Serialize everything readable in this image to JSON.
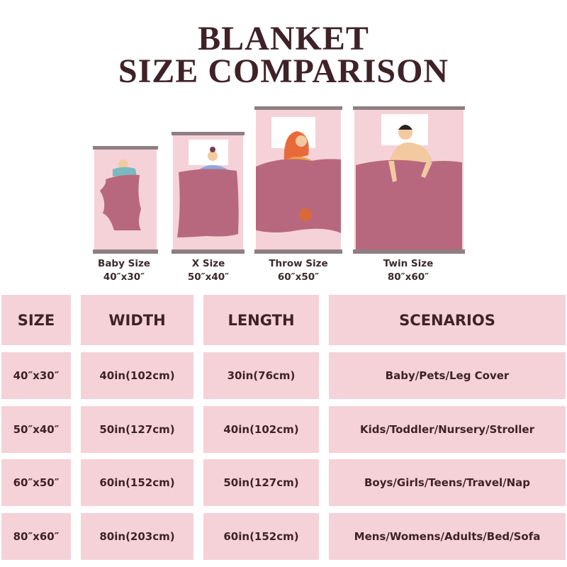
{
  "title": {
    "line1": "BLANKET",
    "line2": "SIZE COMPARISON"
  },
  "colors": {
    "background_pink": "#f5d2d8",
    "blanket": "#b8687e",
    "bar": "#8e7f84",
    "text": "#3f2228"
  },
  "blankets": [
    {
      "name": "Baby Size",
      "dims": "40″x30″"
    },
    {
      "name": "X Size",
      "dims": "50″x40″"
    },
    {
      "name": "Throw Size",
      "dims": "60″x50″"
    },
    {
      "name": "Twin Size",
      "dims": "80″x60″"
    }
  ],
  "table": {
    "headers": [
      "SIZE",
      "WIDTH",
      "LENGTH",
      "SCENARIOS"
    ],
    "rows": [
      [
        "40″x30″",
        "40in(102cm)",
        "30in(76cm)",
        "Baby/Pets/Leg Cover"
      ],
      [
        "50″x40″",
        "50in(127cm)",
        "40in(102cm)",
        "Kids/Toddler/Nursery/Stroller"
      ],
      [
        "60″x50″",
        "60in(152cm)",
        "50in(127cm)",
        "Boys/Girls/Teens/Travel/Nap"
      ],
      [
        "80″x60″",
        "80in(203cm)",
        "60in(152cm)",
        "Mens/Womens/Adults/Bed/Sofa"
      ]
    ]
  }
}
